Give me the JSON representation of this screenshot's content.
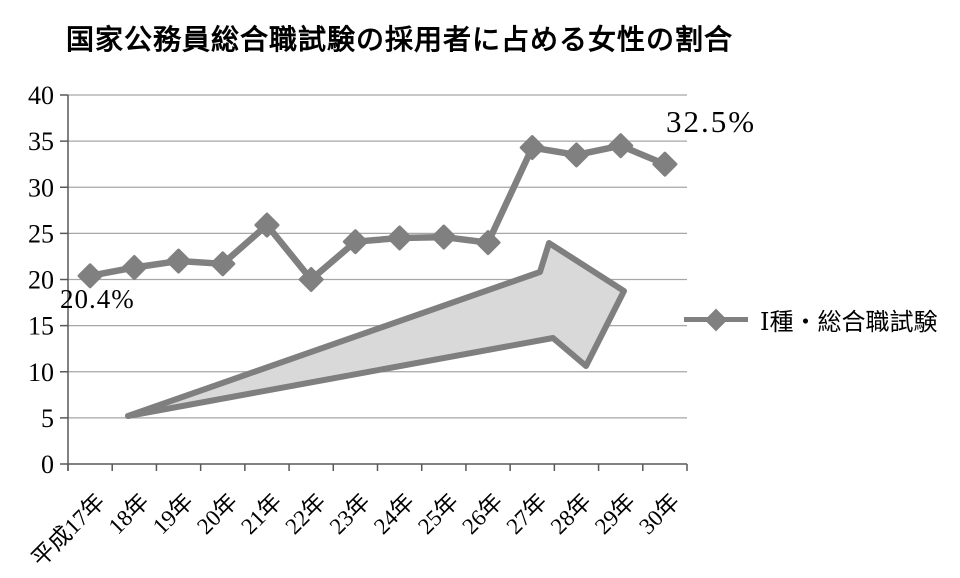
{
  "title": "国家公務員総合職試験の採用者に占める女性の割合",
  "colors": {
    "series": "#808080",
    "gridline": "#a6a6a6",
    "axis": "#595959",
    "arrow_fill": "#d9d9d9",
    "arrow_stroke": "#7f7f7f",
    "text": "#000000",
    "background": "#ffffff"
  },
  "annotations": {
    "start_label": "20.4%",
    "end_label": "32.5%"
  },
  "legend": {
    "series_label": "Ⅰ種・総合職試験"
  },
  "chart_data": {
    "type": "line",
    "title": "国家公務員総合職試験の採用者に占める女性の割合",
    "categories": [
      "平成17年",
      "18年",
      "19年",
      "20年",
      "21年",
      "22年",
      "23年",
      "24年",
      "25年",
      "26年",
      "27年",
      "28年",
      "29年",
      "30年"
    ],
    "series": [
      {
        "name": "Ⅰ種・総合職試験",
        "marker": "diamond",
        "color": "#808080",
        "values": [
          20.4,
          21.3,
          22.0,
          21.7,
          25.9,
          20.0,
          24.1,
          24.5,
          24.6,
          24.0,
          34.3,
          33.5,
          34.5,
          32.5
        ]
      }
    ],
    "xlabel": "",
    "ylabel": "",
    "ylim": [
      0,
      40
    ],
    "ytick_step": 5,
    "yticks": [
      0,
      5,
      10,
      15,
      20,
      25,
      30,
      35,
      40
    ],
    "grid": true,
    "legend_position": "right",
    "x_label_rotation_deg": -45,
    "annotations": [
      {
        "text": "20.4%",
        "target_category": "平成17年",
        "position": "below-first-point"
      },
      {
        "text": "32.5%",
        "target_category": "30年",
        "position": "above-last-point"
      }
    ],
    "decoration": "large upward block arrow from lower-left to upper-right"
  }
}
